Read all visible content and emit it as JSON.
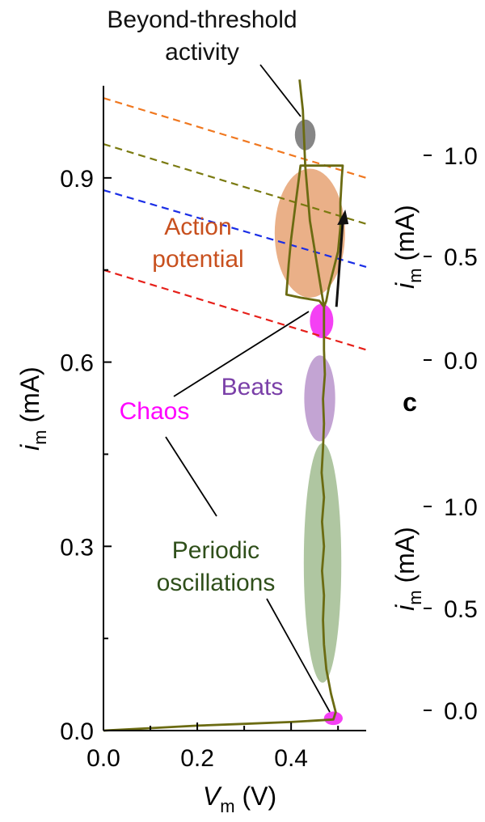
{
  "chart_data": {
    "type": "scatter",
    "xlabel": {
      "symbol": "V",
      "subscript": "m",
      "unit": " (V)"
    },
    "ylabel": {
      "symbol": "i",
      "subscript": "m",
      "unit": " (mA)"
    },
    "xlim": [
      0,
      0.56
    ],
    "ylim": [
      0,
      1.05
    ],
    "x_ticks": [
      "0.0",
      "0.2",
      "0.4"
    ],
    "y_ticks": [
      "0.0",
      "0.3",
      "0.6",
      "0.9"
    ],
    "grid": false,
    "trace": {
      "color": "#6b6b12",
      "points": [
        [
          0.0,
          0.0
        ],
        [
          0.1,
          0.004
        ],
        [
          0.2,
          0.008
        ],
        [
          0.3,
          0.011
        ],
        [
          0.4,
          0.014
        ],
        [
          0.49,
          0.018
        ],
        [
          0.495,
          0.03
        ],
        [
          0.485,
          0.06
        ],
        [
          0.475,
          0.1
        ],
        [
          0.47,
          0.14
        ],
        [
          0.468,
          0.18
        ],
        [
          0.47,
          0.22
        ],
        [
          0.466,
          0.26
        ],
        [
          0.47,
          0.3
        ],
        [
          0.466,
          0.34
        ],
        [
          0.47,
          0.38
        ],
        [
          0.465,
          0.42
        ],
        [
          0.468,
          0.46
        ],
        [
          0.47,
          0.5
        ],
        [
          0.468,
          0.54
        ],
        [
          0.472,
          0.58
        ],
        [
          0.47,
          0.62
        ],
        [
          0.47,
          0.66
        ],
        [
          0.47,
          0.69
        ],
        [
          0.475,
          0.7
        ],
        [
          0.48,
          0.72
        ],
        [
          0.49,
          0.75
        ],
        [
          0.5,
          0.78
        ],
        [
          0.505,
          0.82
        ],
        [
          0.505,
          0.86
        ],
        [
          0.508,
          0.9
        ],
        [
          0.51,
          0.92
        ],
        [
          0.47,
          0.92
        ],
        [
          0.42,
          0.92
        ],
        [
          0.41,
          0.86
        ],
        [
          0.4,
          0.8
        ],
        [
          0.395,
          0.76
        ],
        [
          0.39,
          0.71
        ],
        [
          0.42,
          0.705
        ],
        [
          0.46,
          0.7
        ],
        [
          0.47,
          0.69
        ],
        [
          0.44,
          0.83
        ],
        [
          0.43,
          0.92
        ],
        [
          0.425,
          1.01
        ],
        [
          0.418,
          1.06
        ]
      ]
    },
    "load_lines": [
      {
        "color": "#f07820",
        "x": [
          0.0,
          0.56
        ],
        "y": [
          1.03,
          0.9
        ]
      },
      {
        "color": "#7a7a10",
        "x": [
          0.0,
          0.56
        ],
        "y": [
          0.955,
          0.825
        ]
      },
      {
        "color": "#1a2ee6",
        "x": [
          0.0,
          0.56
        ],
        "y": [
          0.88,
          0.755
        ]
      },
      {
        "color": "#e6201a",
        "x": [
          0.0,
          0.56
        ],
        "y": [
          0.75,
          0.62
        ]
      }
    ],
    "regions": [
      {
        "label": "Beyond-threshold activity",
        "color": "#7f7f7f",
        "cx": 0.43,
        "cy": 0.97,
        "rx": 0.022,
        "ry": 0.025
      },
      {
        "label": "Action potential",
        "color": "#e59c6a",
        "cx": 0.44,
        "cy": 0.81,
        "rx": 0.075,
        "ry": 0.105
      },
      {
        "label": "Chaos",
        "color": "#f000f0",
        "cx": 0.465,
        "cy": 0.667,
        "rx": 0.025,
        "ry": 0.028
      },
      {
        "label": "Beats",
        "color": "#b48dc8",
        "cx": 0.461,
        "cy": 0.541,
        "rx": 0.033,
        "ry": 0.07
      },
      {
        "label": "Periodic oscillations",
        "color": "#9bb88a",
        "cx": 0.467,
        "cy": 0.273,
        "rx": 0.04,
        "ry": 0.195
      },
      {
        "label": "Chaos",
        "color": "#f000f0",
        "cx": 0.49,
        "cy": 0.02,
        "rx": 0.02,
        "ry": 0.011
      }
    ],
    "annotations": [
      {
        "text_lines": [
          "Beyond-threshold",
          "activity"
        ],
        "color": "#111111"
      },
      {
        "text_lines": [
          "Action",
          "potential"
        ],
        "color": "#c8501e"
      },
      {
        "text_lines": [
          "Beats"
        ],
        "color": "#7a3fa8"
      },
      {
        "text_lines": [
          "Chaos"
        ],
        "color": "#ff00ff"
      },
      {
        "text_lines": [
          "Periodic",
          "oscillations"
        ],
        "color": "#2f4f1a"
      }
    ],
    "right_panel": {
      "upper_ticks": [
        "1.0",
        "0.5",
        "0.0"
      ],
      "lower_ticks": [
        "1.0",
        "0.5",
        "0.0"
      ],
      "ylabel": {
        "symbol": "i",
        "subscript": "m",
        "unit": " (mA)"
      },
      "panel_letter": "c"
    }
  }
}
